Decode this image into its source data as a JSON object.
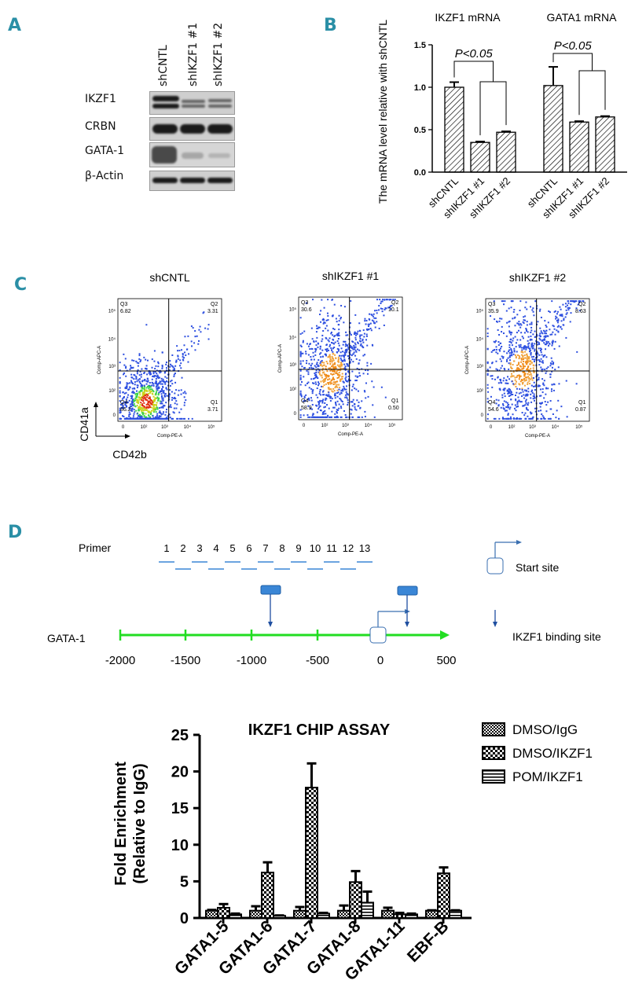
{
  "panels": {
    "a": "A",
    "b": "B",
    "c": "C",
    "d": "D"
  },
  "western_blot": {
    "columns": [
      "shCNTL",
      "shIKZF1 #1",
      "shIKZF1 #2"
    ],
    "rows": [
      "IKZF1",
      "CRBN",
      "GATA-1",
      "β-Actin"
    ]
  },
  "mrna_chart": {
    "chart_data": {
      "type": "bar",
      "titles": [
        "IKZF1 mRNA",
        "GATA1 mRNA"
      ],
      "ylabel": "The mRNA level relative with shCNTL",
      "ylim": [
        0,
        1.5
      ],
      "yticks": [
        "0.0",
        "0.5",
        "1.0",
        "1.5"
      ],
      "groups": [
        {
          "name": "IKZF1 mRNA",
          "categories": [
            "shCNTL",
            "shIKZF1 #1",
            "shIKZF1 #2"
          ],
          "values": [
            1.0,
            0.35,
            0.47
          ],
          "errors": [
            0.06,
            0.01,
            0.01
          ]
        },
        {
          "name": "GATA1 mRNA",
          "categories": [
            "shCNTL",
            "shIKZF1 #1",
            "shIKZF1 #2"
          ],
          "values": [
            1.02,
            0.59,
            0.65
          ],
          "errors": [
            0.22,
            0.01,
            0.01
          ]
        }
      ],
      "annotations": [
        "P<0.05",
        "P<0.05"
      ]
    }
  },
  "flow": {
    "xlabel": "CD42b",
    "ylabel": "CD41a",
    "plots": [
      {
        "title": "shCNTL",
        "q1": "3.71",
        "q2": "3.31",
        "q3": "6.82",
        "q4": "86.2"
      },
      {
        "title": "shIKZF1 #1",
        "q1": "0.50",
        "q2": "10.1",
        "q3": "30.6",
        "q4": "58.9"
      },
      {
        "title": "shIKZF1 #2",
        "q1": "0.87",
        "q2": "8.63",
        "q3": "35.9",
        "q4": "54.6"
      }
    ],
    "quadrant_names": [
      "Q1",
      "Q2",
      "Q3",
      "Q4"
    ],
    "x_axis_name": "Comp-PE-A",
    "y_axis_name": "Comp-APC-A",
    "tick_labels": [
      "0",
      "10²",
      "10³",
      "10⁴",
      "10⁵"
    ]
  },
  "schematic": {
    "primer_label": "Primer",
    "primers": [
      "1",
      "2",
      "3",
      "4",
      "5",
      "6",
      "7",
      "8",
      "9",
      "10",
      "11",
      "12",
      "13"
    ],
    "gene": "GATA-1",
    "axis_ticks": [
      "-2000",
      "-1500",
      "-1000",
      "-500",
      "0",
      "500"
    ],
    "legend_start": "Start site",
    "legend_binding": "IKZF1 binding site"
  },
  "chip_chart": {
    "chart_data": {
      "type": "bar",
      "title": "IKZF1 CHIP ASSAY",
      "ylabel": "Fold Enrichment (Relative to IgG)",
      "ylim": [
        0,
        25
      ],
      "yticks": [
        "0",
        "5",
        "10",
        "15",
        "20",
        "25"
      ],
      "categories": [
        "GATA1-5",
        "GATA1-6",
        "GATA1-7",
        "GATA1-8",
        "GATA1-11",
        "EBF-B"
      ],
      "series": [
        {
          "name": "DMSO/IgG",
          "values": [
            1.0,
            1.0,
            1.0,
            1.0,
            1.0,
            1.0
          ],
          "errors": [
            0.1,
            0.6,
            0.5,
            0.7,
            0.4,
            0.05
          ]
        },
        {
          "name": "DMSO/IKZF1",
          "values": [
            1.4,
            6.2,
            17.8,
            4.9,
            0.5,
            6.1
          ],
          "errors": [
            0.5,
            1.4,
            3.3,
            1.5,
            0.2,
            0.8
          ]
        },
        {
          "name": "POM/IKZF1",
          "values": [
            0.5,
            0.3,
            0.6,
            2.1,
            0.5,
            1.0
          ],
          "errors": [
            0.1,
            0.05,
            0.1,
            1.5,
            0.1,
            0.05
          ]
        }
      ]
    }
  }
}
